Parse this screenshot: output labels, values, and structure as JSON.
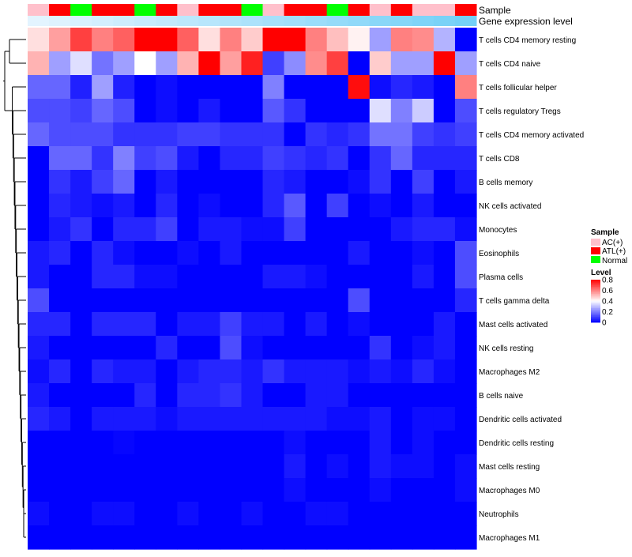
{
  "chart_data": {
    "type": "heatmap",
    "annotation_rows": [
      "Sample",
      "Gene expression level"
    ],
    "sample_groups": [
      "AC(+)",
      "ATL(+)",
      "Normal",
      "ATL(+)",
      "ATL(+)",
      "Normal",
      "ATL(+)",
      "AC(+)",
      "ATL(+)",
      "ATL(+)",
      "Normal",
      "AC(+)",
      "ATL(+)",
      "ATL(+)",
      "Normal",
      "ATL(+)",
      "AC(+)",
      "ATL(+)",
      "AC(+)",
      "AC(+)",
      "ATL(+)"
    ],
    "sample_group_order": [
      0,
      0,
      0.5,
      0,
      0,
      1,
      0,
      0.5,
      0,
      0,
      1,
      0.5,
      0,
      0,
      1,
      0,
      0.5,
      0,
      0.5,
      0.5,
      0
    ],
    "gene_expression_level": [
      0.02,
      0.06,
      0.1,
      0.14,
      0.18,
      0.22,
      0.26,
      0.3,
      0.34,
      0.38,
      0.42,
      0.46,
      0.5,
      0.54,
      0.58,
      0.62,
      0.66,
      0.7,
      0.74,
      0.78,
      0.82
    ],
    "rows": [
      "T cells CD4 memory resting",
      "T cells CD4 naive",
      "T cells follicular helper",
      "T cells regulatory  Tregs",
      "T cells CD4 memory activated",
      "T cells CD8",
      "B cells memory",
      "NK cells activated",
      "Monocytes",
      "Eosinophils",
      "Plasma cells",
      "T cells gamma delta",
      "Mast cells activated",
      "NK cells resting",
      "Macrophages M2",
      "B cells naive",
      "Dendritic cells activated",
      "Dendritic cells resting",
      "Mast cells resting",
      "Macrophages M0",
      "Neutrophils",
      "Macrophages M1"
    ],
    "values": [
      [
        0.45,
        0.55,
        0.7,
        0.6,
        0.65,
        0.8,
        0.8,
        0.65,
        0.45,
        0.6,
        0.48,
        0.8,
        0.8,
        0.6,
        0.5,
        0.42,
        0.25,
        0.6,
        0.58,
        0.28,
        0.0
      ],
      [
        0.52,
        0.25,
        0.35,
        0.18,
        0.25,
        0.4,
        0.25,
        0.52,
        0.8,
        0.55,
        0.75,
        0.1,
        0.22,
        0.58,
        0.7,
        0.0,
        0.48,
        0.25,
        0.25,
        0.8,
        0.25
      ],
      [
        0.16,
        0.16,
        0.05,
        0.25,
        0.05,
        0.0,
        0.02,
        0.0,
        0.0,
        0.0,
        0.0,
        0.2,
        0.0,
        0.0,
        0.0,
        0.78,
        0.02,
        0.06,
        0.04,
        0.0,
        0.6
      ],
      [
        0.12,
        0.12,
        0.1,
        0.16,
        0.12,
        0.0,
        0.02,
        0.0,
        0.04,
        0.0,
        0.0,
        0.14,
        0.08,
        0.0,
        0.0,
        0.0,
        0.35,
        0.2,
        0.32,
        0.0,
        0.12
      ],
      [
        0.16,
        0.12,
        0.12,
        0.12,
        0.08,
        0.08,
        0.08,
        0.1,
        0.1,
        0.08,
        0.08,
        0.08,
        0.0,
        0.08,
        0.06,
        0.08,
        0.18,
        0.18,
        0.1,
        0.08,
        0.1
      ],
      [
        0.0,
        0.16,
        0.16,
        0.08,
        0.2,
        0.1,
        0.12,
        0.04,
        0.0,
        0.06,
        0.06,
        0.1,
        0.08,
        0.06,
        0.08,
        0.0,
        0.08,
        0.16,
        0.06,
        0.06,
        0.06
      ],
      [
        0.0,
        0.08,
        0.04,
        0.1,
        0.16,
        0.0,
        0.04,
        0.0,
        0.0,
        0.0,
        0.0,
        0.06,
        0.04,
        0.0,
        0.0,
        0.02,
        0.08,
        0.0,
        0.1,
        0.0,
        0.04
      ],
      [
        0.0,
        0.06,
        0.04,
        0.02,
        0.04,
        0.0,
        0.06,
        0.0,
        0.02,
        0.0,
        0.0,
        0.06,
        0.14,
        0.0,
        0.1,
        0.0,
        0.02,
        0.0,
        0.04,
        0.0,
        0.0
      ],
      [
        0.0,
        0.04,
        0.08,
        0.0,
        0.06,
        0.06,
        0.1,
        0.0,
        0.04,
        0.04,
        0.02,
        0.02,
        0.1,
        0.0,
        0.0,
        0.0,
        0.0,
        0.04,
        0.06,
        0.06,
        0.02
      ],
      [
        0.04,
        0.06,
        0.0,
        0.06,
        0.02,
        0.0,
        0.0,
        0.02,
        0.0,
        0.04,
        0.0,
        0.0,
        0.0,
        0.0,
        0.0,
        0.04,
        0.0,
        0.0,
        0.02,
        0.0,
        0.12
      ],
      [
        0.04,
        0.0,
        0.0,
        0.06,
        0.06,
        0.02,
        0.02,
        0.0,
        0.0,
        0.0,
        0.0,
        0.04,
        0.04,
        0.02,
        0.0,
        0.0,
        0.0,
        0.0,
        0.04,
        0.0,
        0.12
      ],
      [
        0.12,
        0.0,
        0.0,
        0.0,
        0.0,
        0.0,
        0.0,
        0.0,
        0.0,
        0.0,
        0.0,
        0.0,
        0.0,
        0.0,
        0.0,
        0.12,
        0.0,
        0.0,
        0.0,
        0.0,
        0.06
      ],
      [
        0.06,
        0.06,
        0.0,
        0.06,
        0.06,
        0.06,
        0.0,
        0.04,
        0.04,
        0.1,
        0.04,
        0.04,
        0.0,
        0.04,
        0.0,
        0.02,
        0.0,
        0.0,
        0.0,
        0.04,
        0.0
      ],
      [
        0.04,
        0.0,
        0.0,
        0.0,
        0.0,
        0.0,
        0.06,
        0.0,
        0.0,
        0.12,
        0.02,
        0.0,
        0.0,
        0.0,
        0.0,
        0.0,
        0.08,
        0.0,
        0.02,
        0.04,
        0.0
      ],
      [
        0.02,
        0.06,
        0.0,
        0.06,
        0.04,
        0.04,
        0.0,
        0.04,
        0.06,
        0.06,
        0.04,
        0.08,
        0.04,
        0.04,
        0.04,
        0.02,
        0.04,
        0.02,
        0.06,
        0.02,
        0.0
      ],
      [
        0.04,
        0.0,
        0.0,
        0.0,
        0.0,
        0.06,
        0.0,
        0.06,
        0.06,
        0.08,
        0.04,
        0.0,
        0.0,
        0.04,
        0.04,
        0.0,
        0.0,
        0.0,
        0.0,
        0.0,
        0.0
      ],
      [
        0.06,
        0.04,
        0.0,
        0.04,
        0.04,
        0.04,
        0.02,
        0.04,
        0.04,
        0.04,
        0.04,
        0.04,
        0.04,
        0.04,
        0.02,
        0.02,
        0.04,
        0.0,
        0.02,
        0.02,
        0.0
      ],
      [
        0.0,
        0.0,
        0.0,
        0.0,
        0.01,
        0.0,
        0.0,
        0.0,
        0.0,
        0.0,
        0.0,
        0.0,
        0.02,
        0.0,
        0.0,
        0.0,
        0.04,
        0.0,
        0.02,
        0.0,
        0.0
      ],
      [
        0.0,
        0.0,
        0.0,
        0.0,
        0.0,
        0.0,
        0.0,
        0.0,
        0.0,
        0.0,
        0.0,
        0.0,
        0.04,
        0.0,
        0.02,
        0.0,
        0.04,
        0.02,
        0.02,
        0.0,
        0.02
      ],
      [
        0.0,
        0.0,
        0.0,
        0.0,
        0.0,
        0.0,
        0.0,
        0.0,
        0.0,
        0.0,
        0.0,
        0.0,
        0.02,
        0.0,
        0.0,
        0.0,
        0.02,
        0.0,
        0.0,
        0.0,
        0.02
      ],
      [
        0.02,
        0.0,
        0.0,
        0.02,
        0.02,
        0.0,
        0.0,
        0.02,
        0.0,
        0.0,
        0.02,
        0.0,
        0.0,
        0.02,
        0.02,
        0.0,
        0.0,
        0.0,
        0.0,
        0.0,
        0.0
      ],
      [
        0.0,
        0.0,
        0.0,
        0.0,
        0.0,
        0.0,
        0.0,
        0.0,
        0.0,
        0.0,
        0.0,
        0.0,
        0.0,
        0.0,
        0.0,
        0.0,
        0.0,
        0.0,
        0.0,
        0.0,
        0.0
      ]
    ],
    "color_scale": {
      "low": "#0000FF",
      "mid": "#FFFFFF",
      "high": "#FF0000",
      "range": [
        0,
        0.8
      ]
    },
    "sample_legend": {
      "title": "Sample",
      "entries": [
        {
          "label": "AC(+)",
          "color": "#FFC0CB"
        },
        {
          "label": "ATL(+)",
          "color": "#FF0000"
        },
        {
          "label": "Normal",
          "color": "#00FF00"
        }
      ]
    },
    "level_legend": {
      "title": "Level",
      "ticks": [
        "0.8",
        "0.6",
        "0.4",
        "0.2",
        "0"
      ],
      "tick_values": [
        0.8,
        0.6,
        0.4,
        0.2,
        0
      ]
    },
    "expression_scale": {
      "low": "#E6F5FF",
      "high": "#5BC8F5"
    }
  }
}
